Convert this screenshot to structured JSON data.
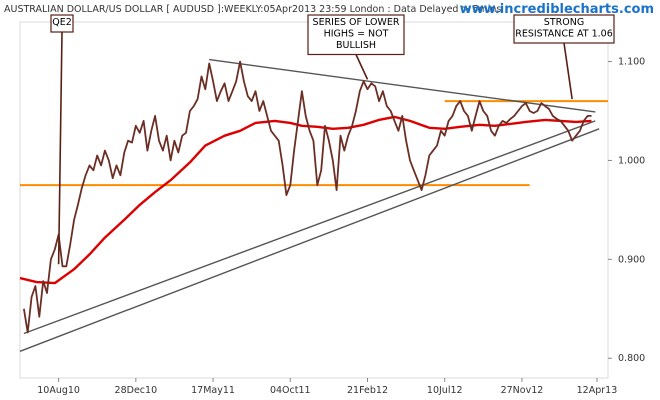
{
  "chart_data": {
    "type": "line",
    "title": "AUSTRALIAN DOLLAR/US DOLLAR [ AUDUSD ]:WEEKLY:05Apr2013 23:59 London : Data Delayed > 5mins",
    "source": "www.incrediblecharts.com",
    "ylim": [
      0.78,
      1.14
    ],
    "yticks": [
      {
        "value": 1.1,
        "label": "1.100"
      },
      {
        "value": 1.0,
        "label": "1.000"
      },
      {
        "value": 0.9,
        "label": "0.900"
      },
      {
        "value": 0.8,
        "label": "0.800"
      }
    ],
    "xticks": [
      {
        "date": "2010-08-10",
        "label": "10Aug10"
      },
      {
        "date": "2010-12-28",
        "label": "28Dec10"
      },
      {
        "date": "2011-05-17",
        "label": "17May11"
      },
      {
        "date": "2011-10-04",
        "label": "04Oct11"
      },
      {
        "date": "2012-02-21",
        "label": "21Feb12"
      },
      {
        "date": "2012-07-10",
        "label": "10Jul12"
      },
      {
        "date": "2012-11-27",
        "label": "27Nov12"
      },
      {
        "date": "2013-04-12",
        "label": "12Apr13"
      }
    ],
    "xlim": [
      "2010-06-01",
      "2013-05-02"
    ],
    "colors": {
      "price": "#6b2e24",
      "moving_average": "#dd0000",
      "horizontal_lines": "#ff8c00",
      "trendlines": "#555555",
      "annotation_lines": "#5a1f14",
      "axis_text": "#333333",
      "site": "#1a73c8"
    },
    "series": [
      {
        "values": [
          [
            "2010-06-08",
            0.85
          ],
          [
            "2010-06-15",
            0.826
          ],
          [
            "2010-06-22",
            0.862
          ],
          [
            "2010-06-29",
            0.873
          ],
          [
            "2010-07-06",
            0.842
          ],
          [
            "2010-07-13",
            0.878
          ],
          [
            "2010-07-20",
            0.866
          ],
          [
            "2010-07-27",
            0.9
          ],
          [
            "2010-08-03",
            0.91
          ],
          [
            "2010-08-10",
            0.925
          ],
          [
            "2010-08-17",
            0.893
          ],
          [
            "2010-08-24",
            0.893
          ],
          [
            "2010-08-31",
            0.915
          ],
          [
            "2010-09-07",
            0.94
          ],
          [
            "2010-09-14",
            0.955
          ],
          [
            "2010-09-21",
            0.972
          ],
          [
            "2010-09-28",
            0.985
          ],
          [
            "2010-10-05",
            0.995
          ],
          [
            "2010-10-12",
            0.99
          ],
          [
            "2010-10-19",
            1.005
          ],
          [
            "2010-10-26",
            0.995
          ],
          [
            "2010-11-02",
            1.01
          ],
          [
            "2010-11-09",
            1.0
          ],
          [
            "2010-11-16",
            0.982
          ],
          [
            "2010-11-23",
            0.995
          ],
          [
            "2010-11-30",
            0.985
          ],
          [
            "2010-12-07",
            1.008
          ],
          [
            "2010-12-14",
            1.02
          ],
          [
            "2010-12-21",
            1.018
          ],
          [
            "2010-12-28",
            1.035
          ],
          [
            "2011-01-04",
            1.028
          ],
          [
            "2011-01-11",
            1.04
          ],
          [
            "2011-01-18",
            1.01
          ],
          [
            "2011-01-25",
            1.03
          ],
          [
            "2011-02-01",
            1.045
          ],
          [
            "2011-02-08",
            1.02
          ],
          [
            "2011-02-15",
            1.01
          ],
          [
            "2011-02-22",
            1.025
          ],
          [
            "2011-03-01",
            1.0
          ],
          [
            "2011-03-08",
            1.02
          ],
          [
            "2011-03-15",
            1.008
          ],
          [
            "2011-03-22",
            1.025
          ],
          [
            "2011-03-29",
            1.028
          ],
          [
            "2011-04-05",
            1.05
          ],
          [
            "2011-04-12",
            1.055
          ],
          [
            "2011-04-19",
            1.062
          ],
          [
            "2011-04-26",
            1.085
          ],
          [
            "2011-05-03",
            1.072
          ],
          [
            "2011-05-10",
            1.098
          ],
          [
            "2011-05-17",
            1.08
          ],
          [
            "2011-05-24",
            1.06
          ],
          [
            "2011-05-31",
            1.07
          ],
          [
            "2011-06-07",
            1.078
          ],
          [
            "2011-06-14",
            1.06
          ],
          [
            "2011-06-21",
            1.07
          ],
          [
            "2011-06-28",
            1.08
          ],
          [
            "2011-07-05",
            1.1
          ],
          [
            "2011-07-12",
            1.08
          ],
          [
            "2011-07-19",
            1.065
          ],
          [
            "2011-07-26",
            1.06
          ],
          [
            "2011-08-02",
            1.07
          ],
          [
            "2011-08-09",
            1.05
          ],
          [
            "2011-08-16",
            1.06
          ],
          [
            "2011-08-23",
            1.045
          ],
          [
            "2011-08-30",
            1.03
          ],
          [
            "2011-09-06",
            1.025
          ],
          [
            "2011-09-13",
            1.02
          ],
          [
            "2011-09-20",
            0.995
          ],
          [
            "2011-09-27",
            0.965
          ],
          [
            "2011-10-04",
            0.975
          ],
          [
            "2011-10-11",
            1.01
          ],
          [
            "2011-10-18",
            1.04
          ],
          [
            "2011-10-25",
            1.07
          ],
          [
            "2011-11-01",
            1.045
          ],
          [
            "2011-11-08",
            1.03
          ],
          [
            "2011-11-15",
            1.02
          ],
          [
            "2011-11-22",
            0.975
          ],
          [
            "2011-11-29",
            0.99
          ],
          [
            "2011-12-06",
            1.035
          ],
          [
            "2011-12-13",
            1.02
          ],
          [
            "2011-12-20",
            1.0
          ],
          [
            "2011-12-27",
            0.97
          ],
          [
            "2012-01-03",
            1.025
          ],
          [
            "2012-01-10",
            1.01
          ],
          [
            "2012-01-17",
            1.025
          ],
          [
            "2012-01-24",
            1.035
          ],
          [
            "2012-01-31",
            1.05
          ],
          [
            "2012-02-07",
            1.07
          ],
          [
            "2012-02-14",
            1.08
          ],
          [
            "2012-02-21",
            1.072
          ],
          [
            "2012-02-28",
            1.078
          ],
          [
            "2012-03-06",
            1.075
          ],
          [
            "2012-03-13",
            1.06
          ],
          [
            "2012-03-20",
            1.07
          ],
          [
            "2012-03-27",
            1.055
          ],
          [
            "2012-04-03",
            1.05
          ],
          [
            "2012-04-10",
            1.04
          ],
          [
            "2012-04-17",
            1.03
          ],
          [
            "2012-04-24",
            1.045
          ],
          [
            "2012-05-01",
            1.02
          ],
          [
            "2012-05-08",
            1.0
          ],
          [
            "2012-05-15",
            0.99
          ],
          [
            "2012-05-22",
            0.98
          ],
          [
            "2012-05-29",
            0.97
          ],
          [
            "2012-06-05",
            0.985
          ],
          [
            "2012-06-12",
            1.005
          ],
          [
            "2012-06-19",
            1.01
          ],
          [
            "2012-06-26",
            1.015
          ],
          [
            "2012-07-03",
            1.03
          ],
          [
            "2012-07-10",
            1.025
          ],
          [
            "2012-07-17",
            1.04
          ],
          [
            "2012-07-24",
            1.045
          ],
          [
            "2012-07-31",
            1.055
          ],
          [
            "2012-08-07",
            1.06
          ],
          [
            "2012-08-14",
            1.05
          ],
          [
            "2012-08-21",
            1.045
          ],
          [
            "2012-08-28",
            1.03
          ],
          [
            "2012-09-04",
            1.045
          ],
          [
            "2012-09-11",
            1.06
          ],
          [
            "2012-09-18",
            1.05
          ],
          [
            "2012-09-25",
            1.045
          ],
          [
            "2012-10-02",
            1.03
          ],
          [
            "2012-10-09",
            1.025
          ],
          [
            "2012-10-16",
            1.035
          ],
          [
            "2012-10-23",
            1.04
          ],
          [
            "2012-10-30",
            1.038
          ],
          [
            "2012-11-06",
            1.042
          ],
          [
            "2012-11-13",
            1.045
          ],
          [
            "2012-11-20",
            1.05
          ],
          [
            "2012-11-27",
            1.055
          ],
          [
            "2012-12-04",
            1.058
          ],
          [
            "2012-12-11",
            1.05
          ],
          [
            "2012-12-18",
            1.048
          ],
          [
            "2012-12-25",
            1.05
          ],
          [
            "2013-01-01",
            1.058
          ],
          [
            "2013-01-08",
            1.055
          ],
          [
            "2013-01-15",
            1.052
          ],
          [
            "2013-01-22",
            1.045
          ],
          [
            "2013-01-29",
            1.042
          ],
          [
            "2013-02-05",
            1.04
          ],
          [
            "2013-02-12",
            1.035
          ],
          [
            "2013-02-19",
            1.03
          ],
          [
            "2013-02-26",
            1.02
          ],
          [
            "2013-03-05",
            1.025
          ],
          [
            "2013-03-12",
            1.03
          ],
          [
            "2013-03-19",
            1.04
          ],
          [
            "2013-03-26",
            1.045
          ],
          [
            "2013-04-02",
            1.045
          ]
        ]
      },
      {
        "values": [
          [
            "2010-06-01",
            0.881
          ],
          [
            "2010-07-01",
            0.877
          ],
          [
            "2010-08-03",
            0.876
          ],
          [
            "2010-09-07",
            0.89
          ],
          [
            "2010-10-05",
            0.905
          ],
          [
            "2010-11-02",
            0.922
          ],
          [
            "2010-12-07",
            0.94
          ],
          [
            "2011-01-04",
            0.955
          ],
          [
            "2011-02-01",
            0.968
          ],
          [
            "2011-03-01",
            0.98
          ],
          [
            "2011-04-05",
            0.998
          ],
          [
            "2011-05-03",
            1.015
          ],
          [
            "2011-06-07",
            1.025
          ],
          [
            "2011-07-05",
            1.03
          ],
          [
            "2011-08-02",
            1.038
          ],
          [
            "2011-09-06",
            1.04
          ],
          [
            "2011-10-04",
            1.038
          ],
          [
            "2011-10-25",
            1.035
          ],
          [
            "2011-11-22",
            1.034
          ],
          [
            "2011-12-20",
            1.032
          ],
          [
            "2012-01-17",
            1.033
          ],
          [
            "2012-02-14",
            1.036
          ],
          [
            "2012-03-13",
            1.041
          ],
          [
            "2012-04-10",
            1.044
          ],
          [
            "2012-05-08",
            1.04
          ],
          [
            "2012-06-12",
            1.033
          ],
          [
            "2012-07-10",
            1.032
          ],
          [
            "2012-08-07",
            1.034
          ],
          [
            "2012-09-11",
            1.036
          ],
          [
            "2012-10-09",
            1.035
          ],
          [
            "2012-11-06",
            1.037
          ],
          [
            "2012-12-04",
            1.039
          ],
          [
            "2013-01-08",
            1.041
          ],
          [
            "2013-02-05",
            1.04
          ],
          [
            "2013-03-05",
            1.039
          ],
          [
            "2013-04-02",
            1.04
          ]
        ]
      }
    ],
    "horizontal_lines": [
      {
        "value": 0.975,
        "from": "2010-06-01",
        "to": "2012-12-11"
      },
      {
        "value": 1.06,
        "from": "2012-07-10",
        "to": "2013-05-02"
      }
    ],
    "trendlines": [
      {
        "from": [
          "2011-05-10",
          1.102
        ],
        "to": [
          "2013-04-09",
          1.049
        ]
      },
      {
        "from": [
          "2010-06-08",
          0.825
        ],
        "to": [
          "2013-04-09",
          1.04
        ]
      },
      {
        "from": [
          "2010-06-01",
          0.807
        ],
        "to": [
          "2013-04-16",
          1.032
        ]
      }
    ],
    "annotations": [
      {
        "name": "qe2",
        "lines": [
          "QE2"
        ],
        "target": [
          "2010-08-10",
          0.895
        ]
      },
      {
        "name": "lower-highs",
        "lines": [
          "SERIES OF LOWER",
          "HIGHS = NOT",
          "BULLISH"
        ],
        "target": [
          "2012-02-21",
          1.082
        ]
      },
      {
        "name": "resistance",
        "lines": [
          "STRONG",
          "RESISTANCE AT 1.06"
        ],
        "target": [
          "2013-02-26",
          1.062
        ]
      }
    ]
  }
}
